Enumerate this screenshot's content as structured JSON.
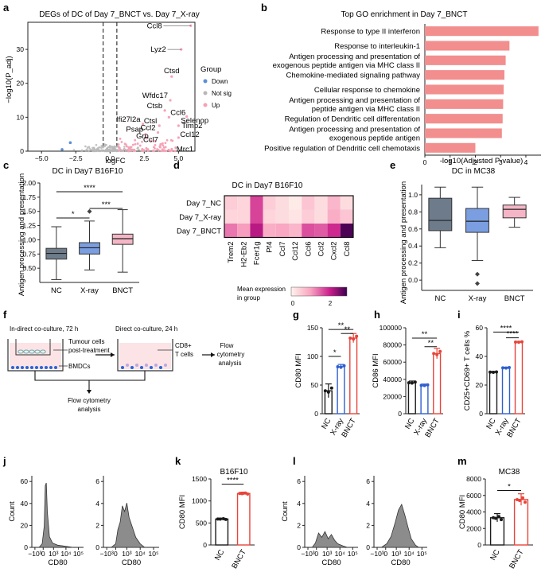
{
  "colors": {
    "pink": "#f28e8e",
    "nc": "#6e7b8b",
    "xray": "#7b9ee0",
    "bnct": "#f4b6c6",
    "up": "#f7a1b5",
    "down": "#5b8fd6",
    "notsig": "#b7b7b7",
    "nc_bar": "#1a1a1a",
    "xray_bar": "#2f5fd0",
    "bnct_bar": "#e8443a",
    "hist": "#8c8c8c"
  },
  "panel_labels": [
    "a",
    "b",
    "c",
    "d",
    "e",
    "f",
    "g",
    "h",
    "i",
    "j",
    "k",
    "l",
    "m"
  ],
  "panel_a": {
    "title": "DEGs of DC of Day 7_BNCT vs. Day 7_X-ray",
    "xlabel": "logFC",
    "ylabel": "−log10(P_adj)",
    "legend_title": "Group",
    "legend": [
      "Down",
      "Not sig",
      "Up"
    ],
    "chart_data": {
      "type": "scatter",
      "xlim": [
        -6,
        6.2
      ],
      "ylim": [
        0,
        38
      ],
      "xticks": [
        "−5.0",
        "−2.5",
        "0.0",
        "2.5",
        "5.0"
      ],
      "yticks": [
        "0",
        "10",
        "20",
        "30"
      ],
      "thresholds": [
        -0.5,
        0.5
      ],
      "labeled_genes": [
        {
          "name": "Ccl8",
          "x": 5.9,
          "y": 37
        },
        {
          "name": "Lyz2",
          "x": 5.2,
          "y": 30
        },
        {
          "name": "Ctsd",
          "x": 4.5,
          "y": 22
        },
        {
          "name": "Wfdc17",
          "x": 4.4,
          "y": 15
        },
        {
          "name": "Ctsb",
          "x": 4.0,
          "y": 12
        },
        {
          "name": "Ccl6",
          "x": 4.3,
          "y": 10
        },
        {
          "name": "Selenop",
          "x": 5.6,
          "y": 10.2
        },
        {
          "name": "Ifi27l2a",
          "x": 2.4,
          "y": 8
        },
        {
          "name": "Ctsl",
          "x": 3.6,
          "y": 7.5
        },
        {
          "name": "Timp2",
          "x": 5.0,
          "y": 7.5
        },
        {
          "name": "Psap",
          "x": 2.6,
          "y": 5
        },
        {
          "name": "Ccl2",
          "x": 3.5,
          "y": 5.5
        },
        {
          "name": "Grn",
          "x": 3.0,
          "y": 3
        },
        {
          "name": "Ccl12",
          "x": 5.0,
          "y": 4
        },
        {
          "name": "Ccl7",
          "x": 3.7,
          "y": 2
        },
        {
          "name": "Mrc1",
          "x": 4.8,
          "y": 1
        }
      ],
      "down_points": [
        {
          "x": -2.9,
          "y": 2.5
        },
        {
          "x": -3.5,
          "y": 0.5
        }
      ]
    }
  },
  "panel_b": {
    "title": "Top GO enrichment in Day 7_BNCT",
    "xlabel": "-log10(Adjusted P-value)",
    "chart_data": {
      "type": "bar",
      "orientation": "horizontal",
      "categories": [
        [
          "Response to type II interferon"
        ],
        [
          "Response to interleukin-1"
        ],
        [
          "Antigen processing and presentation of",
          "exogenous peptide antigen via MHC class II"
        ],
        [
          "Chemokine-mediated signaling pathway"
        ],
        [
          "Cellular response to chemokine"
        ],
        [
          "Antigen processing and presentation of",
          "peptide antigen via MHC class II"
        ],
        [
          "Regulation of Dendritic cell differentation"
        ],
        [
          "Antigen processing and presentation of",
          "exogenous peptide antigen"
        ],
        [
          "Positive regulation of Dendritic cell chemotaxis"
        ]
      ],
      "values": [
        4.5,
        3.35,
        3.2,
        3.15,
        3.12,
        3.1,
        3.08,
        3.05,
        2.0
      ],
      "xlim": [
        0,
        4.6
      ],
      "xticks": [
        "0",
        "1",
        "2",
        "3",
        "4"
      ]
    }
  },
  "panel_c": {
    "title": "DC in Day7 B16F10",
    "ylabel": "Antigen processing and presentation",
    "sig": [
      "****",
      "*",
      "***"
    ],
    "chart_data": {
      "type": "box",
      "categories": [
        "NC",
        "X-ray",
        "BNCT"
      ],
      "boxes": [
        {
          "min": 0.3,
          "q1": 0.66,
          "median": 0.76,
          "q3": 0.85,
          "max": 1.23,
          "outliers": []
        },
        {
          "min": 0.47,
          "q1": 0.75,
          "median": 0.86,
          "q3": 0.95,
          "max": 1.33,
          "outliers": [
            1.5
          ]
        },
        {
          "min": 0.43,
          "q1": 0.92,
          "median": 1.02,
          "q3": 1.1,
          "max": 1.53,
          "outliers": []
        }
      ],
      "ylim": [
        0.25,
        2.0
      ],
      "yticks": [
        "0.50",
        "0.75",
        "1.00",
        "1.25",
        "1.50",
        "1.75",
        "2.00"
      ]
    }
  },
  "panel_d": {
    "title": "DC in Day7 B16F10",
    "legend_title": [
      "Mean expression",
      "in group"
    ],
    "legend_ticks": [
      "0",
      "2"
    ],
    "chart_data": {
      "type": "heatmap",
      "rows": [
        "Day 7_NC",
        "Day 7_X-ray",
        "Day 7_BNCT"
      ],
      "cols": [
        "Trem2",
        "H2-Eb2",
        "Fcer1g",
        "Pf4",
        "Ccl7",
        "Ccl12",
        "Ccl6",
        "Ccl2",
        "Cxcl2",
        "Ccl8"
      ],
      "values": [
        [
          0.5,
          0.4,
          1.8,
          0.5,
          0.3,
          0.1,
          0.6,
          0.3,
          0.8,
          0.3
        ],
        [
          0.4,
          0.4,
          1.8,
          0.4,
          0.3,
          0.2,
          0.5,
          0.3,
          0.9,
          0.6
        ],
        [
          1.4,
          1.1,
          2.2,
          0.9,
          1.0,
          0.8,
          1.7,
          1.6,
          2.0,
          2.9
        ]
      ],
      "vmin": 0,
      "vmax": 3
    }
  },
  "panel_e": {
    "title": "DC in MC38",
    "ylabel": "Antigen processing and presentation",
    "chart_data": {
      "type": "box",
      "categories": [
        "NC",
        "X-ray",
        "BNCT"
      ],
      "boxes": [
        {
          "min": 0.38,
          "q1": 0.58,
          "median": 0.7,
          "q3": 0.96,
          "max": 1.09,
          "outliers": []
        },
        {
          "min": 0.23,
          "q1": 0.56,
          "median": 0.69,
          "q3": 0.84,
          "max": 1.09,
          "outliers": [
            0.07,
            -0.04
          ]
        },
        {
          "min": 0.62,
          "q1": 0.73,
          "median": 0.83,
          "q3": 0.88,
          "max": 0.97,
          "outliers": []
        }
      ],
      "ylim": [
        -0.12,
        1.12
      ],
      "yticks": [
        "0.0",
        "0.2",
        "0.4",
        "0.6",
        "0.8",
        "1.0"
      ]
    }
  },
  "panel_f": {
    "label_indirect": "In-direct co-culture, 72 h",
    "label_direct": "Direct co-culture, 24 h",
    "label_tumour": [
      "Tumour cells",
      "post-treatment"
    ],
    "label_bmdc": "BMDCs",
    "label_cd8": [
      "CD8+",
      "T cells"
    ],
    "label_flow1": [
      "Flow",
      "cytometry",
      "analysis"
    ],
    "label_flow2": [
      "Flow cytometry",
      "analysis"
    ]
  },
  "panel_g": {
    "ylabel": "CD80 MFI",
    "sig": [
      "**",
      "*",
      "**"
    ],
    "chart_data": {
      "type": "bar",
      "categories": [
        "NC",
        "X-ray",
        "BNCT"
      ],
      "values": [
        40,
        82,
        132
      ],
      "errors": [
        12,
        4,
        8
      ],
      "ylim": [
        0,
        150
      ],
      "yticks": [
        "0",
        "50",
        "100",
        "150"
      ]
    }
  },
  "panel_h": {
    "ylabel": "CD86 MFI",
    "sig": [
      "**",
      "**"
    ],
    "chart_data": {
      "type": "bar",
      "categories": [
        "NC",
        "X-ray",
        "BNCT"
      ],
      "values": [
        36000,
        33000,
        70000
      ],
      "errors": [
        2000,
        1500,
        6000
      ],
      "ylim": [
        0,
        100000
      ],
      "yticks": [
        "0",
        "20000",
        "40000",
        "60000",
        "80000",
        "100000"
      ]
    }
  },
  "panel_i": {
    "ylabel": "CD25+CD69+ T cells %",
    "sig": [
      "****",
      "****"
    ],
    "chart_data": {
      "type": "bar",
      "categories": [
        "NC",
        "X-ray",
        "BNCT"
      ],
      "values": [
        29,
        32,
        50
      ],
      "errors": [
        0.5,
        0.5,
        0.5
      ],
      "ylim": [
        0,
        60
      ],
      "yticks": [
        "0",
        "20",
        "40",
        "60"
      ]
    }
  },
  "panel_j": {
    "xlabel": "CD80",
    "ylabel": "Count",
    "yticks_left": [
      "0",
      "20",
      "40",
      "60"
    ],
    "yticks_right": [
      "0",
      "2",
      "4",
      "6"
    ],
    "xticks": [
      "−10³",
      "0",
      "10³",
      "10⁴",
      "10⁵"
    ]
  },
  "panel_k": {
    "title": "B16F10",
    "ylabel": "CD80 MFI",
    "sig": "****",
    "chart_data": {
      "type": "bar",
      "categories": [
        "NC",
        "BNCT"
      ],
      "values": [
        590,
        1170
      ],
      "errors": [
        20,
        30
      ],
      "ylim": [
        0,
        1500
      ],
      "yticks": [
        "0",
        "500",
        "1000",
        "1500"
      ]
    }
  },
  "panel_l": {
    "xlabel": "CD80",
    "ylabel": "Count",
    "yticks_left": [
      "0",
      "2",
      "4",
      "6"
    ],
    "yticks_right": [
      "0",
      "2",
      "4",
      "6"
    ],
    "xticks": [
      "−10³",
      "0",
      "10³",
      "10⁴",
      "10⁵"
    ]
  },
  "panel_m": {
    "title": "MC38",
    "ylabel": "CD80 MFI",
    "sig": "*",
    "chart_data": {
      "type": "bar",
      "categories": [
        "NC",
        "BNCT"
      ],
      "values": [
        3300,
        5500
      ],
      "errors": [
        500,
        700
      ],
      "ylim": [
        0,
        8000
      ],
      "yticks": [
        "0",
        "2000",
        "4000",
        "6000",
        "8000"
      ]
    }
  }
}
